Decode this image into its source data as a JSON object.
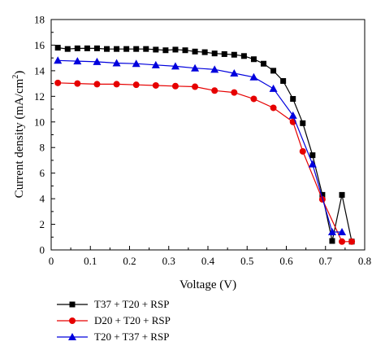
{
  "chart_data": {
    "type": "line",
    "title": "",
    "xlabel": "Voltage (V)",
    "ylabel_main": "Current density (mA/cm",
    "ylabel_sup": "2",
    "ylabel_tail": ")",
    "xlim": [
      0,
      0.8
    ],
    "ylim": [
      0,
      18
    ],
    "xticks": [
      0,
      0.1,
      0.2,
      0.3,
      0.4,
      0.5,
      0.6,
      0.7,
      0.8
    ],
    "xtick_labels": [
      "0",
      "0.1",
      "0.2",
      "0.3",
      "0.4",
      "0.5",
      "0.6",
      "0.7",
      "0.8"
    ],
    "yticks": [
      0,
      2,
      4,
      6,
      8,
      10,
      12,
      14,
      16,
      18
    ],
    "ytick_labels": [
      "0",
      "2",
      "4",
      "6",
      "8",
      "10",
      "12",
      "14",
      "16",
      "18"
    ],
    "grid": false,
    "legend_position": "below",
    "series": [
      {
        "name": "T37 + T20 + RSP",
        "color": "#000000",
        "marker": "square",
        "x": [
          0.017,
          0.042,
          0.067,
          0.092,
          0.117,
          0.142,
          0.167,
          0.192,
          0.217,
          0.242,
          0.267,
          0.292,
          0.317,
          0.342,
          0.367,
          0.392,
          0.417,
          0.442,
          0.467,
          0.492,
          0.517,
          0.542,
          0.567,
          0.592,
          0.617,
          0.642,
          0.667,
          0.692,
          0.717,
          0.742,
          0.767
        ],
        "y": [
          15.8,
          15.7,
          15.75,
          15.75,
          15.75,
          15.7,
          15.7,
          15.7,
          15.7,
          15.7,
          15.65,
          15.6,
          15.65,
          15.6,
          15.5,
          15.45,
          15.35,
          15.3,
          15.25,
          15.15,
          14.9,
          14.55,
          14.0,
          13.2,
          11.8,
          9.9,
          7.4,
          4.3,
          0.7,
          4.3,
          0.65
        ]
      },
      {
        "name": "D20 + T20 + RSP",
        "color": "#e60000",
        "marker": "circle",
        "x": [
          0.017,
          0.067,
          0.117,
          0.167,
          0.217,
          0.267,
          0.317,
          0.367,
          0.417,
          0.467,
          0.517,
          0.567,
          0.617,
          0.642,
          0.692,
          0.742,
          0.767
        ],
        "y": [
          13.05,
          13.0,
          12.95,
          12.95,
          12.9,
          12.85,
          12.8,
          12.75,
          12.45,
          12.3,
          11.8,
          11.1,
          10.0,
          7.7,
          3.95,
          0.65,
          0.65
        ]
      },
      {
        "name": "T20 + T37 + RSP",
        "color": "#0000dd",
        "marker": "triangle",
        "x": [
          0.017,
          0.067,
          0.117,
          0.167,
          0.217,
          0.267,
          0.317,
          0.367,
          0.417,
          0.467,
          0.517,
          0.567,
          0.617,
          0.667,
          0.717,
          0.742
        ],
        "y": [
          14.8,
          14.75,
          14.7,
          14.6,
          14.55,
          14.45,
          14.35,
          14.2,
          14.1,
          13.8,
          13.5,
          12.6,
          10.5,
          6.7,
          1.4,
          1.4
        ]
      }
    ]
  }
}
